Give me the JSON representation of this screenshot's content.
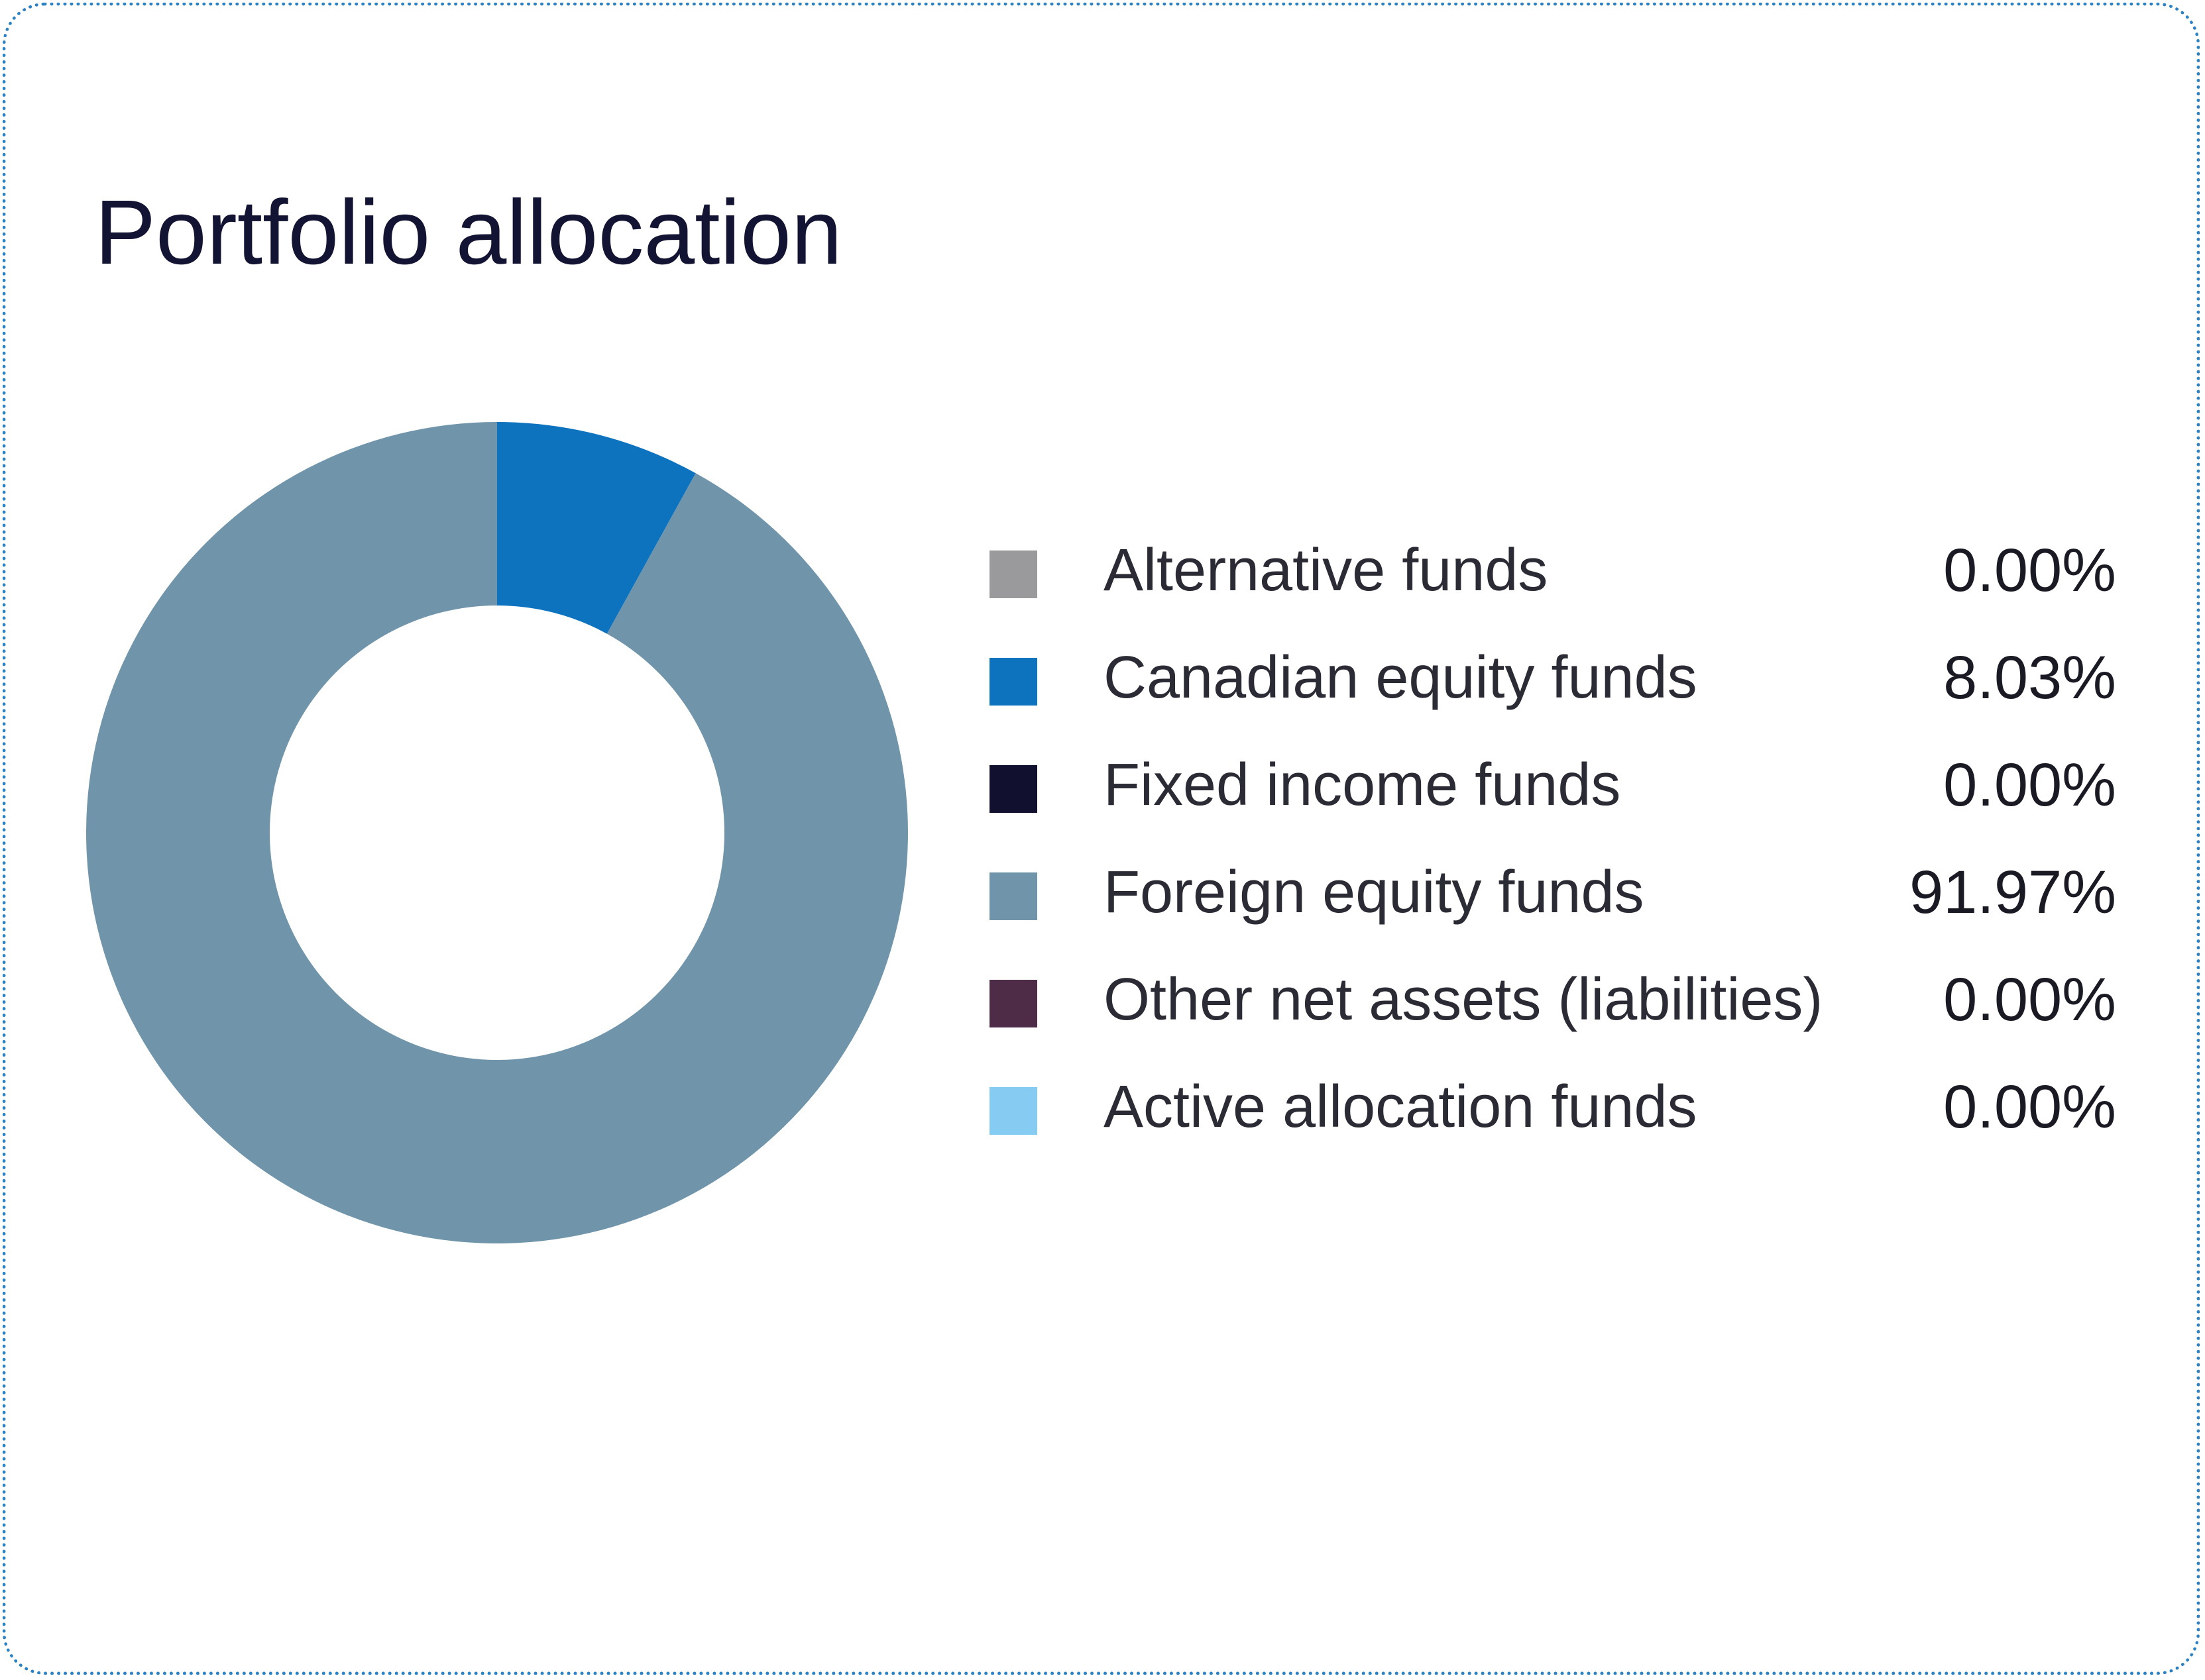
{
  "card": {
    "title": "Portfolio allocation"
  },
  "chart_data": {
    "type": "pie",
    "title": "Portfolio allocation",
    "donut": true,
    "legend_position": "right",
    "slices": [
      {
        "label": "Alternative funds",
        "value": 0.0,
        "display": "0.00%",
        "color": "#9a9a9c"
      },
      {
        "label": "Canadian equity funds",
        "value": 8.03,
        "display": "8.03%",
        "color": "#0e73be"
      },
      {
        "label": "Fixed income funds",
        "value": 0.0,
        "display": "0.00%",
        "color": "#12102f"
      },
      {
        "label": "Foreign equity funds",
        "value": 91.97,
        "display": "91.97%",
        "color": "#7095ab"
      },
      {
        "label": "Other net assets (liabilities)",
        "value": 0.0,
        "display": "0.00%",
        "color": "#4e2b47"
      },
      {
        "label": "Active allocation funds",
        "value": 0.0,
        "display": "0.00%",
        "color": "#86ccf2"
      }
    ]
  },
  "theme": {
    "border_color": "#2a82c4",
    "title_color": "#131333"
  }
}
